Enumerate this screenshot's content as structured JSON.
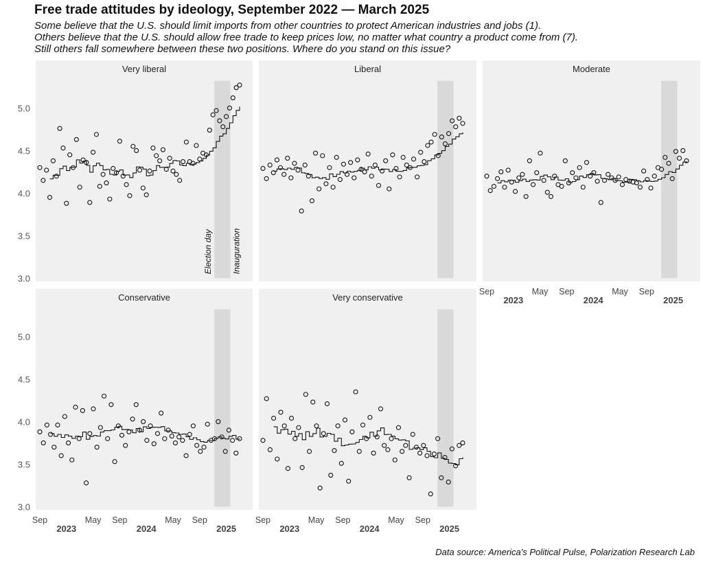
{
  "title": "Free trade attitudes by ideology, September 2022 — March 2025",
  "subtitle": [
    "Some believe that the U.S. should limit imports from other countries to protect American industries and jobs (1).",
    "Others believe that the U.S. should allow free trade to keep prices low, no matter what country a product come from (7).",
    "Still others fall somewhere between these two positions. Where do you stand on this issue?"
  ],
  "source": "Data source: America's Political Pulse, Polarization Research Lab",
  "chart_data": {
    "type": "scatter",
    "x_start": "Sep 2022",
    "x_end": "Mar 2025",
    "x_unit": "months since Sep 2022",
    "ylim": [
      3.0,
      5.56
    ],
    "yticks": [
      3.0,
      3.5,
      4.0,
      4.5,
      5.0
    ],
    "xticks": [
      {
        "m": 0,
        "label": "Sep"
      },
      {
        "m": 8,
        "label": "May"
      },
      {
        "m": 12,
        "label": "Sep"
      },
      {
        "m": 20,
        "label": "May"
      },
      {
        "m": 24,
        "label": "Sep"
      }
    ],
    "year_labels": [
      {
        "m": 4,
        "label": "2023"
      },
      {
        "m": 16,
        "label": "2024"
      },
      {
        "m": 28,
        "label": "2025"
      }
    ],
    "shaded_period": {
      "start_month": 26.2,
      "end_month": 28.6,
      "labels": [
        "Election day",
        "Inauguration"
      ]
    },
    "trend": "rolling mean (step line)",
    "panels": [
      {
        "name": "Very liberal",
        "values": [
          4.3,
          4.15,
          4.27,
          3.95,
          4.38,
          4.2,
          4.76,
          4.53,
          3.88,
          4.45,
          4.3,
          4.63,
          4.07,
          4.39,
          4.36,
          3.89,
          4.48,
          4.69,
          4.08,
          4.22,
          4.12,
          3.93,
          4.29,
          4.24,
          4.61,
          4.2,
          4.1,
          3.97,
          4.55,
          4.5,
          4.27,
          4.06,
          3.98,
          4.26,
          4.53,
          4.44,
          4.38,
          4.51,
          4.28,
          4.41,
          4.26,
          4.22,
          4.15,
          4.37,
          4.6,
          4.37,
          4.35,
          4.56,
          4.4,
          4.47,
          4.45,
          4.74,
          4.92,
          4.97,
          4.85,
          4.78,
          4.9,
          5.0,
          5.12,
          5.24,
          5.27
        ]
      },
      {
        "name": "Liberal",
        "values": [
          4.29,
          4.17,
          4.33,
          4.24,
          4.39,
          4.3,
          4.22,
          4.41,
          4.18,
          4.35,
          4.27,
          3.79,
          4.33,
          4.2,
          3.91,
          4.47,
          4.05,
          4.44,
          4.11,
          4.3,
          4.07,
          4.42,
          4.16,
          4.34,
          4.22,
          4.36,
          4.18,
          4.39,
          4.28,
          4.25,
          4.46,
          4.2,
          4.33,
          4.09,
          4.26,
          4.38,
          4.05,
          4.45,
          4.29,
          4.19,
          4.42,
          4.33,
          4.3,
          4.4,
          4.19,
          4.48,
          4.37,
          4.56,
          4.6,
          4.69,
          4.44,
          4.66,
          4.58,
          4.7,
          4.85,
          4.78,
          4.88,
          4.82
        ]
      },
      {
        "name": "Moderate",
        "values": [
          4.2,
          4.03,
          4.08,
          4.17,
          4.25,
          4.07,
          4.27,
          4.13,
          4.02,
          4.18,
          4.22,
          3.96,
          4.38,
          4.1,
          4.24,
          4.47,
          4.15,
          4.01,
          3.96,
          4.2,
          4.1,
          4.08,
          4.38,
          4.12,
          4.24,
          4.18,
          4.3,
          4.07,
          4.36,
          4.2,
          4.24,
          4.14,
          3.89,
          4.15,
          4.22,
          4.18,
          4.15,
          4.19,
          4.1,
          4.16,
          4.14,
          4.13,
          4.12,
          4.07,
          4.26,
          4.16,
          4.06,
          4.2,
          4.3,
          4.28,
          4.42,
          4.35,
          4.17,
          4.49,
          4.41,
          4.5,
          4.38
        ]
      },
      {
        "name": "Conservative",
        "values": [
          3.88,
          3.75,
          3.96,
          3.85,
          3.7,
          3.96,
          3.6,
          4.06,
          3.75,
          3.55,
          4.17,
          3.8,
          4.13,
          3.28,
          3.86,
          4.15,
          3.7,
          3.93,
          4.3,
          3.8,
          4.2,
          3.53,
          3.95,
          3.84,
          3.72,
          3.88,
          4.03,
          4.2,
          3.9,
          4.0,
          3.78,
          3.95,
          3.74,
          3.86,
          4.1,
          3.8,
          3.9,
          3.83,
          3.75,
          3.82,
          3.78,
          3.6,
          3.85,
          3.95,
          3.72,
          3.65,
          3.7,
          3.97,
          3.78,
          3.8,
          4.0,
          3.82,
          3.65,
          3.9,
          3.78,
          3.63,
          3.8
        ]
      },
      {
        "name": "Very conservative",
        "values": [
          3.78,
          4.27,
          3.67,
          4.04,
          3.56,
          4.11,
          3.95,
          3.45,
          4.04,
          3.8,
          3.93,
          3.46,
          4.32,
          3.65,
          4.23,
          3.95,
          3.22,
          3.86,
          4.21,
          3.37,
          3.66,
          3.95,
          3.51,
          4.02,
          3.3,
          3.88,
          4.35,
          3.65,
          3.96,
          3.8,
          4.05,
          3.63,
          3.82,
          4.15,
          3.72,
          3.67,
          3.8,
          3.55,
          3.93,
          3.65,
          3.72,
          3.34,
          3.85,
          3.7,
          3.63,
          3.72,
          3.6,
          3.15,
          3.62,
          3.8,
          3.34,
          3.58,
          3.29,
          3.68,
          3.48,
          3.72,
          3.75
        ]
      }
    ]
  }
}
